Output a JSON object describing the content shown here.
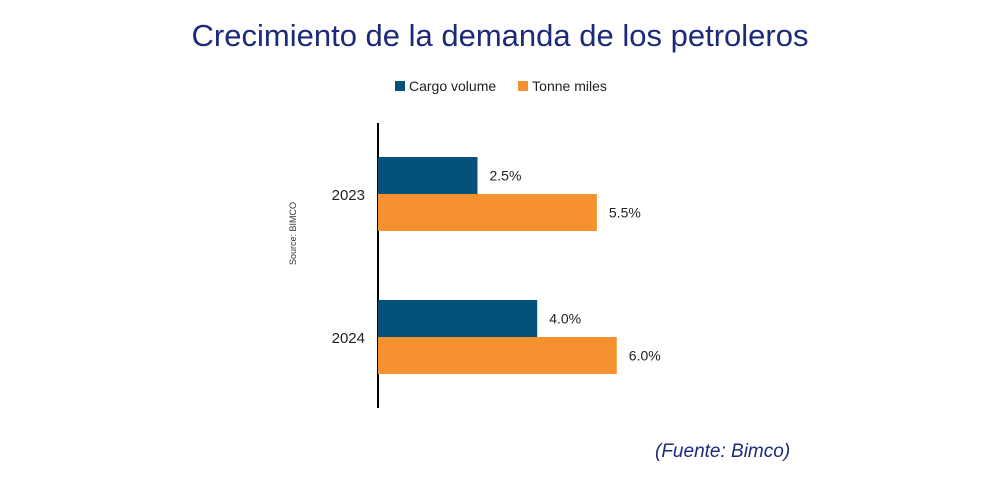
{
  "title": "Crecimiento de la demanda de los petroleros",
  "source_rotated": "Source: BIMCO",
  "footnote": "(Fuente: Bimco)",
  "colors": {
    "cargo": "#04527a",
    "tonne": "#f5922f",
    "title": "#1c2a7a"
  },
  "chart_data": {
    "type": "bar",
    "orientation": "horizontal",
    "categories": [
      "2023",
      "2024"
    ],
    "series": [
      {
        "name": "Cargo volume",
        "values": [
          2.5,
          4.0
        ],
        "labels": [
          "2.5%",
          "4.0%"
        ]
      },
      {
        "name": "Tonne miles",
        "values": [
          5.5,
          6.0
        ],
        "labels": [
          "5.5%",
          "6.0%"
        ]
      }
    ],
    "unit": "%",
    "legend": "top",
    "grid": false
  }
}
